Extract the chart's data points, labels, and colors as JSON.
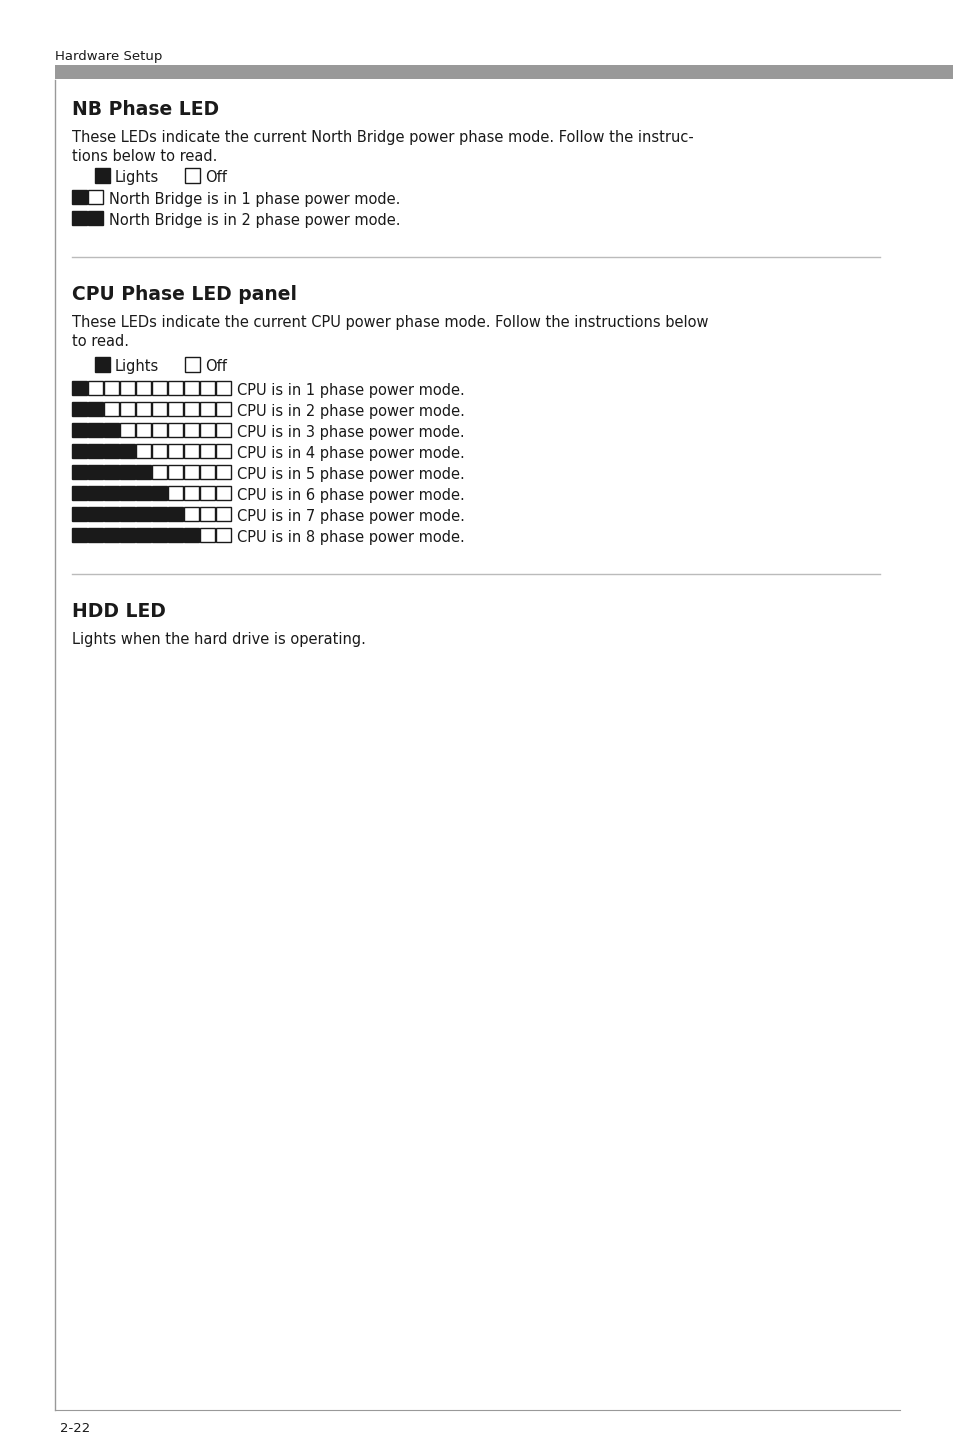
{
  "page_number": "2-22",
  "header_text": "Hardware Setup",
  "header_bar_color": "#999999",
  "background_color": "#ffffff",
  "page_bg": "#ffffff",
  "section1_title": "NB Phase LED",
  "section1_body1": "These LEDs indicate the current North Bridge power phase mode. Follow the instruc-",
  "section1_body2": "tions below to read.",
  "section1_legend_lights": "Lights",
  "section1_legend_off": "Off",
  "section1_rows": [
    {
      "on": 1,
      "off": 1,
      "text": "North Bridge is in 1 phase power mode."
    },
    {
      "on": 2,
      "off": 0,
      "text": "North Bridge is in 2 phase power mode."
    }
  ],
  "section2_title": "CPU Phase LED panel",
  "section2_body1": "These LEDs indicate the current CPU power phase mode. Follow the instructions below",
  "section2_body2": "to read.",
  "section2_legend_lights": "Lights",
  "section2_legend_off": "Off",
  "section2_rows": [
    {
      "on": 1,
      "off": 9,
      "text": "CPU is in 1 phase power mode."
    },
    {
      "on": 2,
      "off": 8,
      "text": "CPU is in 2 phase power mode."
    },
    {
      "on": 3,
      "off": 7,
      "text": "CPU is in 3 phase power mode."
    },
    {
      "on": 4,
      "off": 6,
      "text": "CPU is in 4 phase power mode."
    },
    {
      "on": 5,
      "off": 5,
      "text": "CPU is in 5 phase power mode."
    },
    {
      "on": 6,
      "off": 4,
      "text": "CPU is in 6 phase power mode."
    },
    {
      "on": 7,
      "off": 3,
      "text": "CPU is in 7 phase power mode."
    },
    {
      "on": 8,
      "off": 2,
      "text": "CPU is in 8 phase power mode."
    }
  ],
  "section3_title": "HDD LED",
  "section3_body": "Lights when the hard drive is operating.",
  "divider_color": "#bbbbbb",
  "text_color": "#1a1a1a",
  "title_color": "#1a1a1a",
  "led_on_color": "#1a1a1a",
  "led_off_color": "#ffffff",
  "led_border_color": "#1a1a1a",
  "left_border_color": "#999999"
}
